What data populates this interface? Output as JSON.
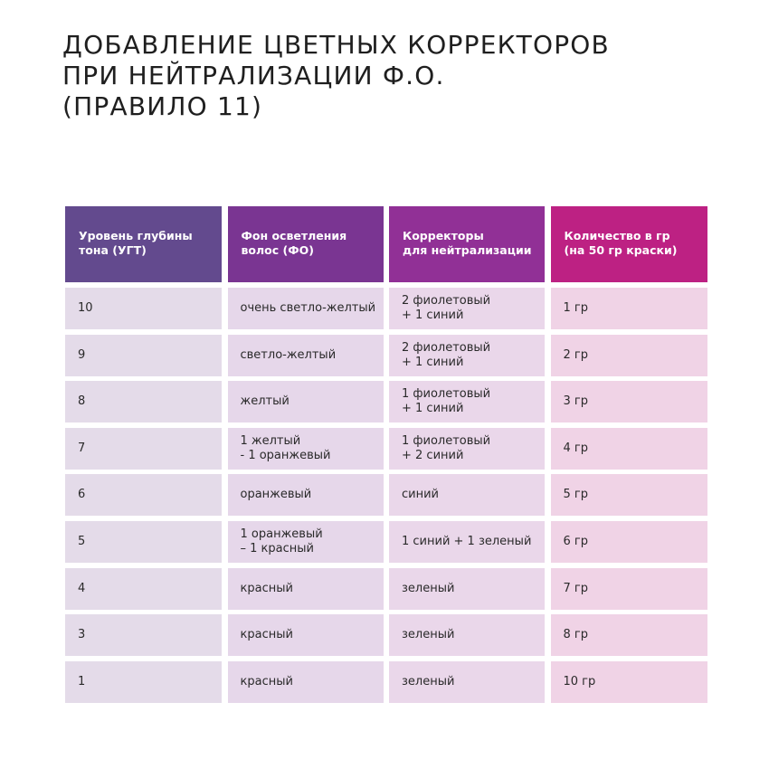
{
  "title": {
    "lines": [
      "ДОБАВЛЕНИЕ ЦВЕТНЫХ КОРРЕКТОРОВ",
      "ПРИ НЕЙТРАЛИЗАЦИИ Ф.О.",
      "(ПРАВИЛО 11)"
    ]
  },
  "colors": {
    "header": [
      "#634a8e",
      "#7a3592",
      "#913096",
      "#bd2183"
    ],
    "cells": [
      "#e4dbe9",
      "#e6d7ea",
      "#ead7ea",
      "#f0d3e6"
    ]
  },
  "table": {
    "headers": [
      "Уровень глубины\nтона (УГТ)",
      "Фон осветления\nволос (ФО)",
      "Корректоры\nдля нейтрализации",
      "Количество в гр\n(на 50 гр краски)"
    ],
    "rows": [
      [
        "10",
        "очень светло-желтый",
        "2 фиолетовый\n+ 1 синий",
        "1 гр"
      ],
      [
        "9",
        "светло-желтый",
        "2 фиолетовый\n+ 1 синий",
        "2 гр"
      ],
      [
        "8",
        "желтый",
        "1 фиолетовый\n+ 1 синий",
        "3 гр"
      ],
      [
        "7",
        "1 желтый\n- 1 оранжевый",
        "1 фиолетовый\n+ 2 синий",
        "4 гр"
      ],
      [
        "6",
        "оранжевый",
        "синий",
        "5 гр"
      ],
      [
        "5",
        "1 оранжевый\n– 1 красный",
        "1 синий + 1 зеленый",
        "6 гр"
      ],
      [
        "4",
        "красный",
        "зеленый",
        "7 гр"
      ],
      [
        "3",
        "красный",
        "зеленый",
        "8 гр"
      ],
      [
        "1",
        "красный",
        "зеленый",
        "10 гр"
      ]
    ]
  }
}
